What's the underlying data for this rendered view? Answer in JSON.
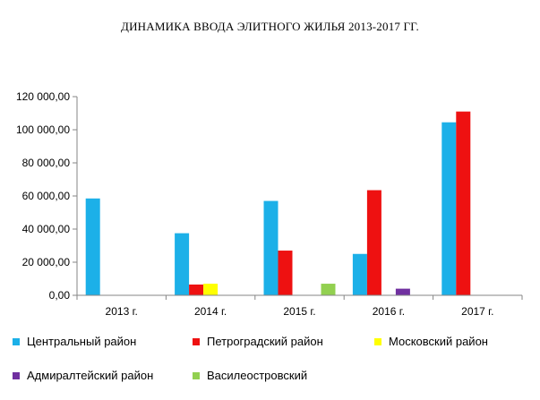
{
  "chart_data": {
    "type": "bar",
    "title": "ДИНАМИКА ВВОДА ЭЛИТНОГО ЖИЛЬЯ 2013-2017 ГГ.",
    "categories": [
      "2013 г.",
      "2014  г.",
      "2015  г.",
      "2016  г.",
      "2017  г."
    ],
    "yticks": [
      "0,00",
      "20 000,00",
      "40 000,00",
      "60 000,00",
      "80 000,00",
      "100 000,00",
      "120 000,00"
    ],
    "ylim": [
      0,
      120000
    ],
    "grid": false,
    "legend_position": "bottom",
    "series": [
      {
        "name": "Центральный район",
        "color": "#1CB0E8",
        "values": [
          58500,
          37500,
          57000,
          25000,
          104500
        ]
      },
      {
        "name": "Петроградский район",
        "color": "#EE1111",
        "values": [
          0,
          6500,
          27000,
          63500,
          111000
        ]
      },
      {
        "name": "Московский район",
        "color": "#FFFF00",
        "values": [
          0,
          7000,
          0,
          0,
          0
        ]
      },
      {
        "name": "Адмиралтейский район",
        "color": "#7030A0",
        "values": [
          0,
          0,
          0,
          4000,
          0
        ]
      },
      {
        "name": "Василеостровский",
        "color": "#92D050",
        "values": [
          0,
          0,
          7000,
          0,
          0
        ]
      }
    ]
  }
}
